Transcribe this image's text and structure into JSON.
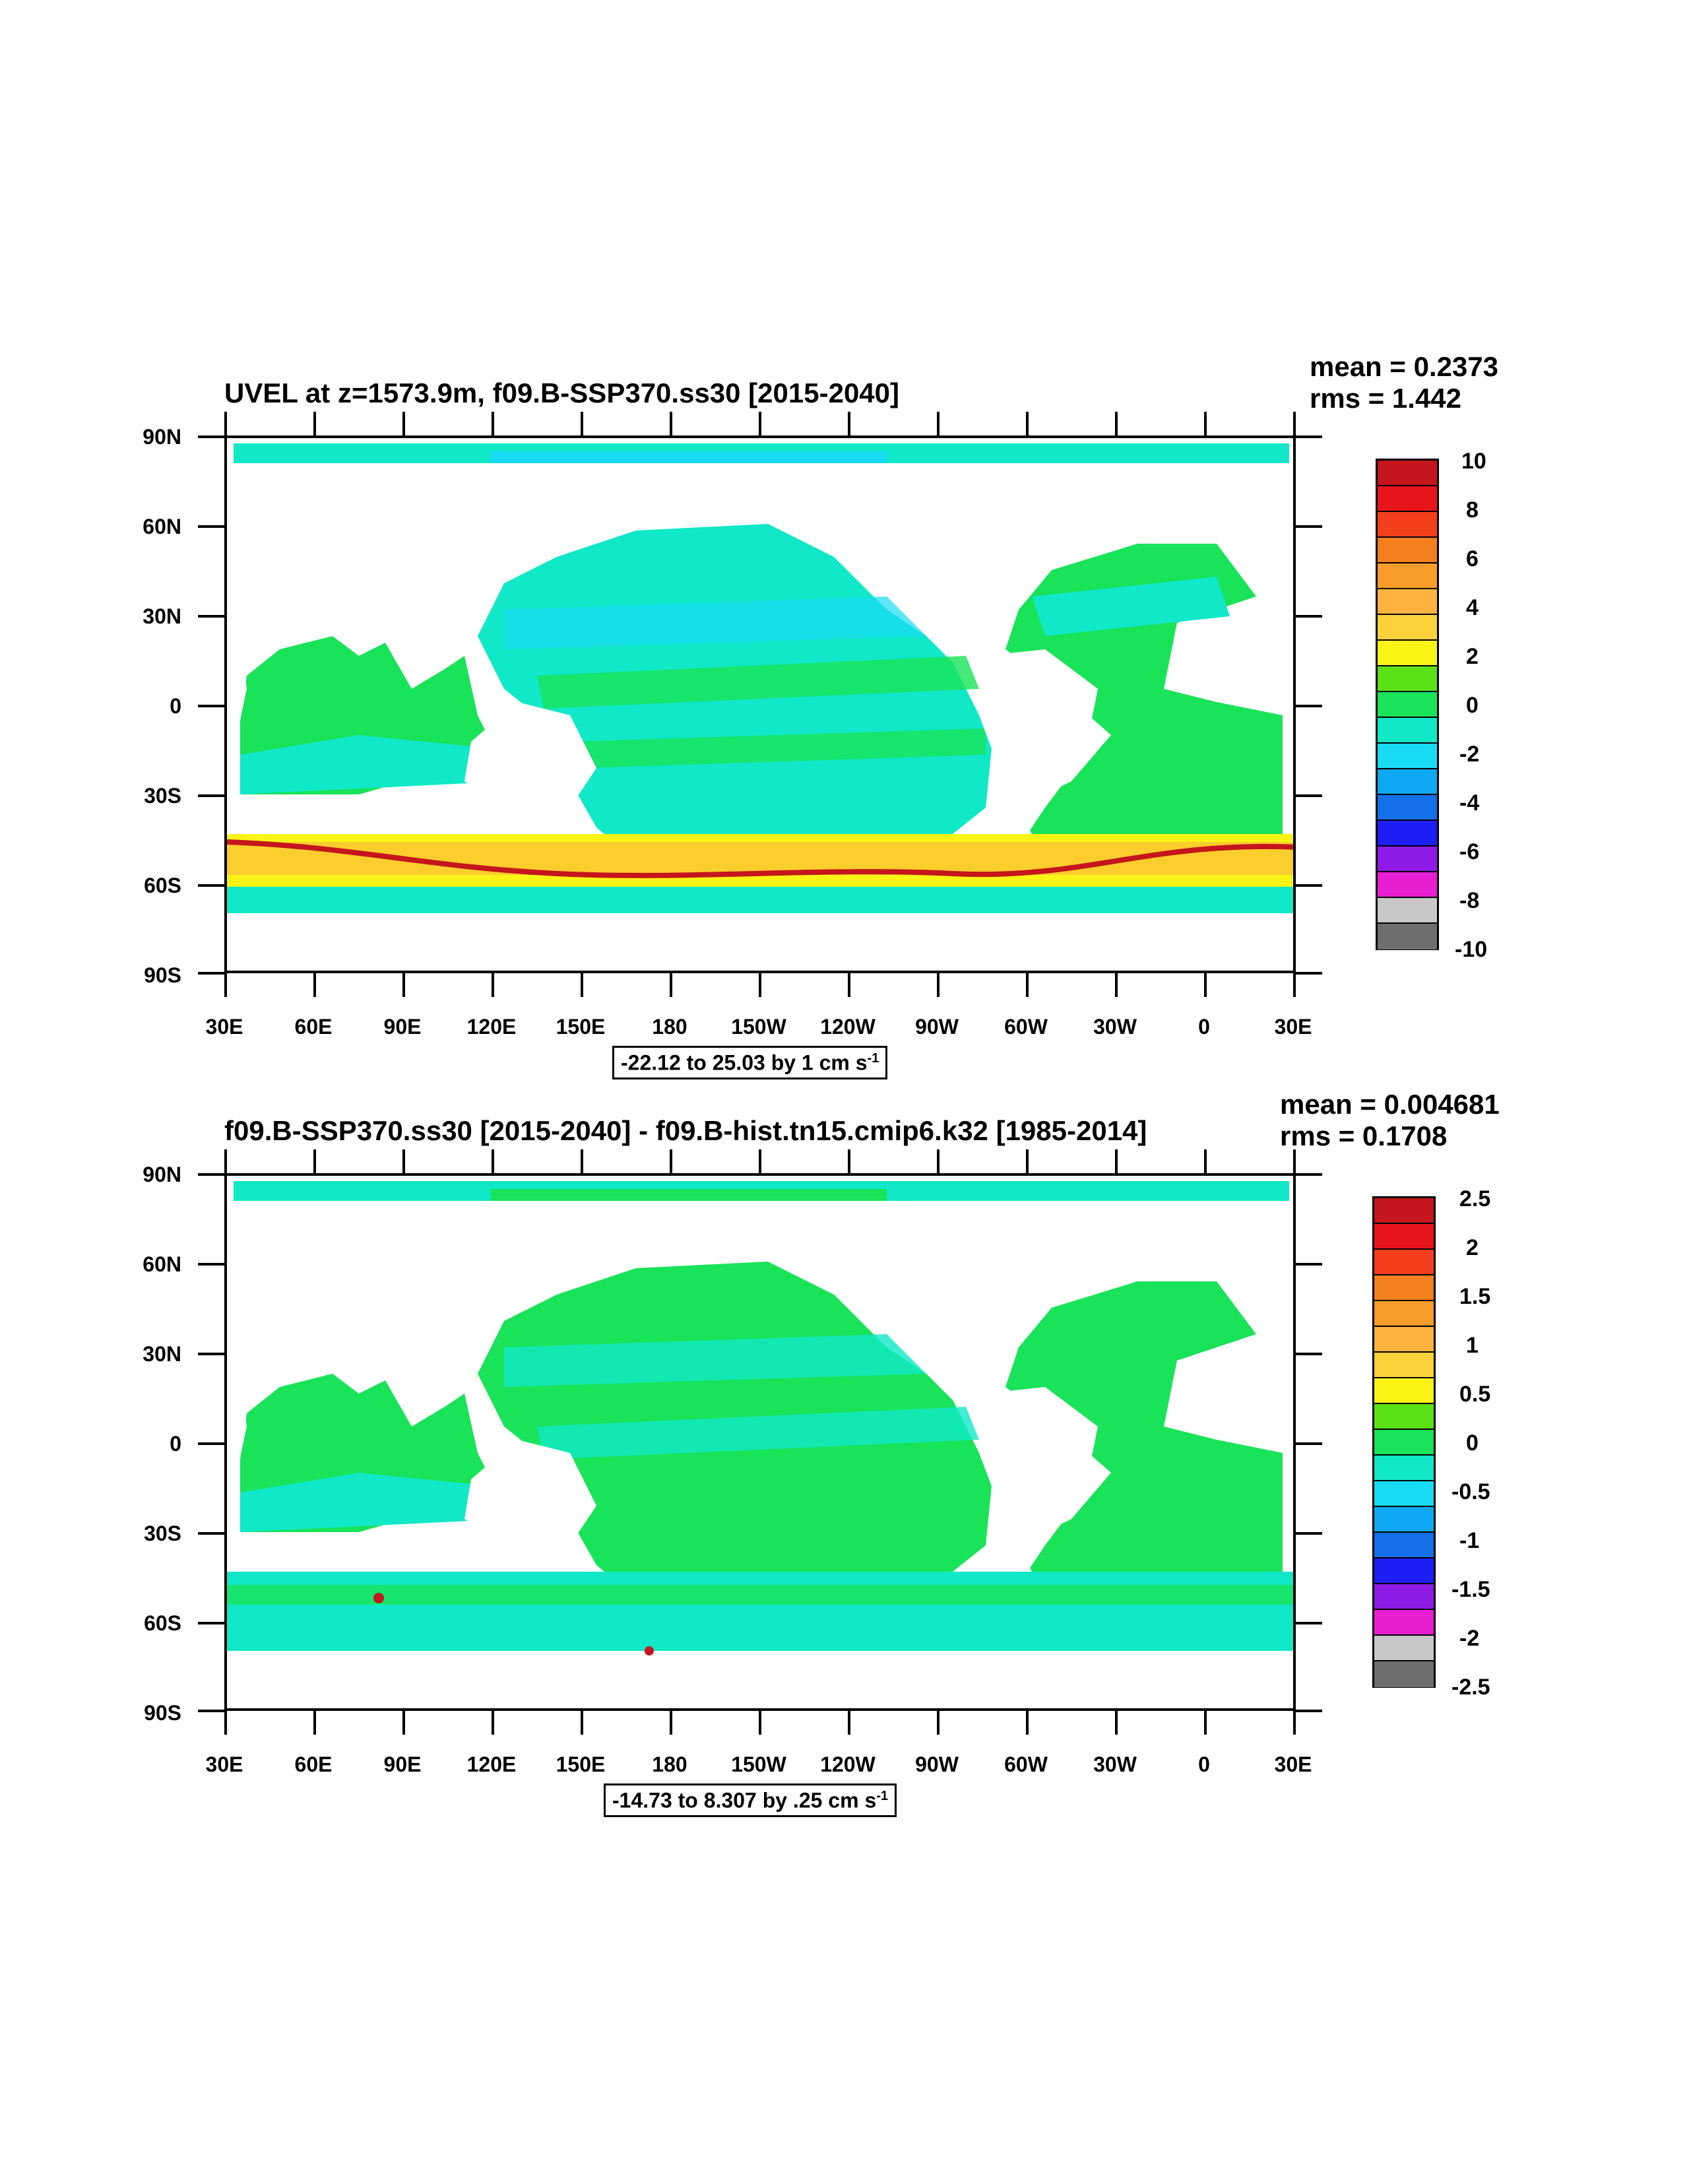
{
  "colorbar_colors": [
    "#c4161c",
    "#e8141c",
    "#f43f1d",
    "#f47f1d",
    "#fa9c2c",
    "#fcb33d",
    "#fdd13a",
    "#f9f416",
    "#5ce116",
    "#19e358",
    "#10e8c8",
    "#18dcf4",
    "#0fa8f3",
    "#1470e8",
    "#1e1ef7",
    "#8e1be6",
    "#e81ed2",
    "#c8c8c8",
    "#6e6e6e"
  ],
  "panel1": {
    "title": "UVEL at z=1573.9m, f09.B-SSP370.ss30 [2015-2040]",
    "mean": "mean = 0.2373",
    "rms": "rms = 1.442",
    "range_text": "-22.12 to 25.03 by 1 cm s",
    "range_sup": "-1",
    "colorbar_labels": [
      "10",
      "8",
      "6",
      "4",
      "2",
      "0",
      "-2",
      "-4",
      "-6",
      "-8",
      "-10"
    ]
  },
  "panel2": {
    "title": "f09.B-SSP370.ss30 [2015-2040] - f09.B-hist.tn15.cmip6.k32 [1985-2014]",
    "mean": "mean = 0.004681",
    "rms": "rms = 0.1708",
    "range_text": "-14.73 to 8.307 by .25 cm s",
    "range_sup": "-1",
    "colorbar_labels": [
      "2.5",
      "2",
      "1.5",
      "1",
      "0.5",
      "0",
      "-0.5",
      "-1",
      "-1.5",
      "-2",
      "-2.5"
    ]
  },
  "lat_labels": [
    "90N",
    "60N",
    "30N",
    "0",
    "30S",
    "60S",
    "90S"
  ],
  "lon_labels": [
    "30E",
    "60E",
    "90E",
    "120E",
    "150E",
    "180",
    "150W",
    "120W",
    "90W",
    "60W",
    "30W",
    "0",
    "30E"
  ]
}
